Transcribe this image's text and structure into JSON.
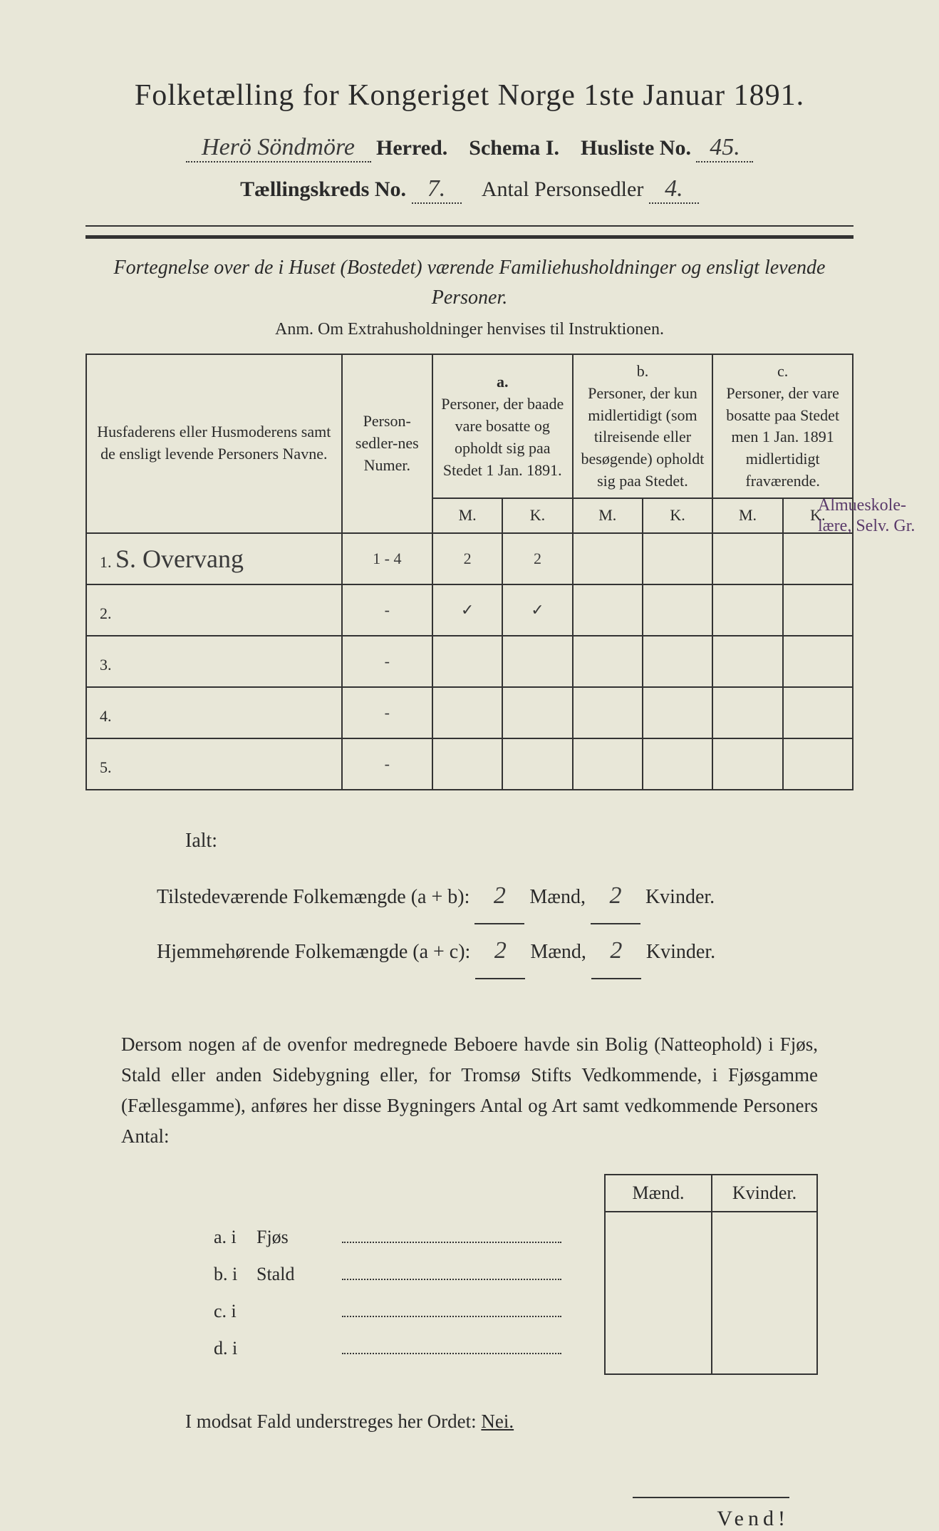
{
  "title": "Folketælling for Kongeriget Norge 1ste Januar 1891.",
  "line2": {
    "herred_hw": "Herö Söndmöre",
    "herred_label": "Herred.",
    "schema_label": "Schema I.",
    "husliste_label": "Husliste No.",
    "husliste_hw": "45."
  },
  "line3": {
    "kreds_label": "Tællingskreds No.",
    "kreds_hw": "7.",
    "antal_label": "Antal Personsedler",
    "antal_hw": "4."
  },
  "subtitle": "Fortegnelse over de i Huset (Bostedet) værende Familiehusholdninger og ensligt levende Personer.",
  "anm_label": "Anm.",
  "anm_text": "Om Extrahusholdninger henvises til Instruktionen.",
  "table": {
    "head_names": "Husfaderens eller Husmoderens samt de ensligt levende Personers Navne.",
    "head_num": "Person-sedler-nes Numer.",
    "head_a": "a.",
    "head_a_text": "Personer, der baade vare bosatte og opholdt sig paa Stedet 1 Jan. 1891.",
    "head_b": "b.",
    "head_b_text": "Personer, der kun midlertidigt (som tilreisende eller besøgende) opholdt sig paa Stedet.",
    "head_c": "c.",
    "head_c_text": "Personer, der vare bosatte paa Stedet men 1 Jan. 1891 midlertidigt fraværende.",
    "M": "M.",
    "K": "K.",
    "rows": [
      {
        "n": "1.",
        "name_hw": "S. Overvang",
        "num_hw": "1 - 4",
        "aM": "2",
        "aK": "2",
        "bM": "",
        "bK": "",
        "cM": "",
        "cK": ""
      },
      {
        "n": "2.",
        "name_hw": "",
        "num_hw": "-",
        "aM": "✓",
        "aK": "✓",
        "bM": "",
        "bK": "",
        "cM": "",
        "cK": ""
      },
      {
        "n": "3.",
        "name_hw": "",
        "num_hw": "-",
        "aM": "",
        "aK": "",
        "bM": "",
        "bK": "",
        "cM": "",
        "cK": ""
      },
      {
        "n": "4.",
        "name_hw": "",
        "num_hw": "-",
        "aM": "",
        "aK": "",
        "bM": "",
        "bK": "",
        "cM": "",
        "cK": ""
      },
      {
        "n": "5.",
        "name_hw": "",
        "num_hw": "-",
        "aM": "",
        "aK": "",
        "bM": "",
        "bK": "",
        "cM": "",
        "cK": ""
      }
    ]
  },
  "margin_note": "Almueskole-lære, Selv. Gr.",
  "ialt": {
    "label": "Ialt:",
    "line1_a": "Tilstedeværende Folkemængde (a + b):",
    "line1_m": "2",
    "line1_mlab": "Mænd,",
    "line1_k": "2",
    "line1_klab": "Kvinder.",
    "line2_a": "Hjemmehørende Folkemængde (a + c):",
    "line2_m": "2",
    "line2_mlab": "Mænd,",
    "line2_k": "2",
    "line2_klab": "Kvinder."
  },
  "para": "Dersom nogen af de ovenfor medregnede Beboere havde sin Bolig (Natteophold) i Fjøs, Stald eller anden Sidebygning eller, for Tromsø Stifts Vedkommende, i Fjøsgamme (Fællesgamme), anføres her disse Bygningers Antal og Art samt vedkommende Personers Antal:",
  "bottom": {
    "maend": "Mænd.",
    "kvinder": "Kvinder.",
    "rows": [
      {
        "lab": "a.  i",
        "txt": "Fjøs"
      },
      {
        "lab": "b.  i",
        "txt": "Stald"
      },
      {
        "lab": "c.  i",
        "txt": ""
      },
      {
        "lab": "d.  i",
        "txt": ""
      }
    ]
  },
  "modsat": "I modsat Fald understreges her Ordet: ",
  "nei": "Nei.",
  "vend": "Vend!",
  "colors": {
    "bg": "#e8e7d8",
    "text": "#2a2a2a",
    "note": "#5a3a6a"
  }
}
